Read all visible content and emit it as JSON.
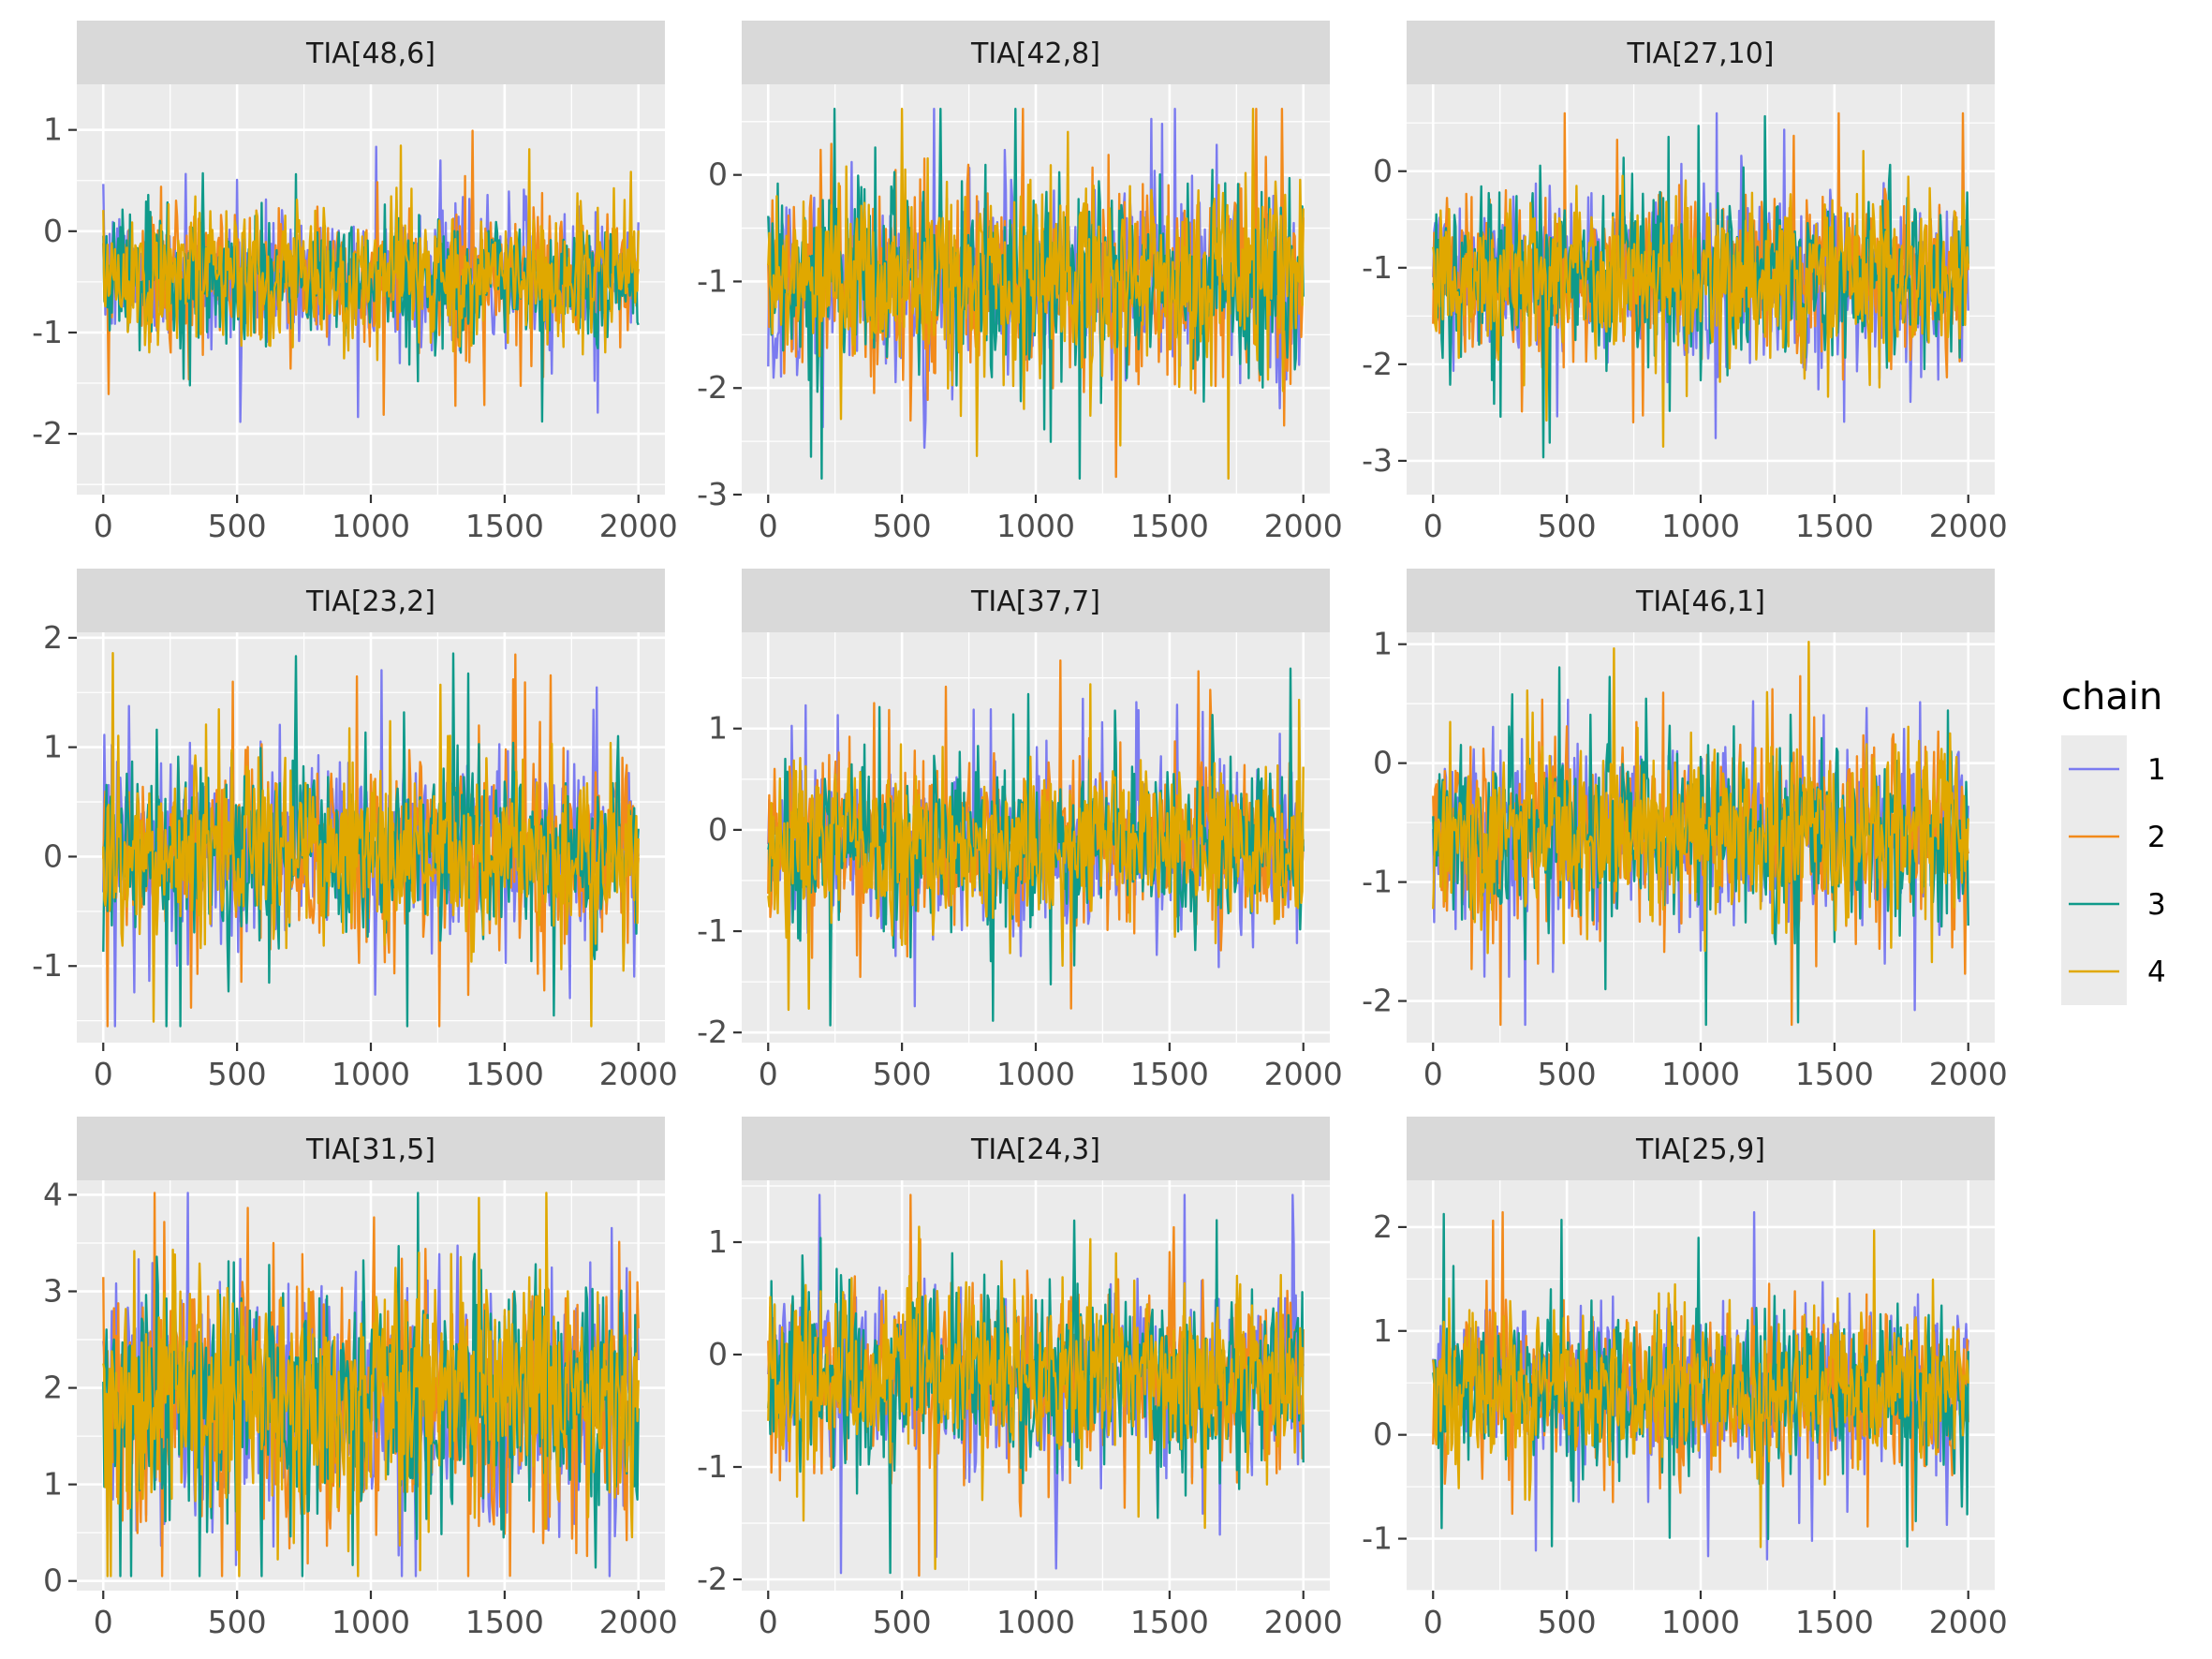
{
  "chart_data": {
    "type": "line",
    "layout": {
      "rows": 3,
      "cols": 3
    },
    "x_range": [
      0,
      2000
    ],
    "x_ticks": [
      0,
      500,
      1000,
      1500,
      2000
    ],
    "grid": true,
    "legend": {
      "title": "chain",
      "placement": "right",
      "entries": [
        {
          "label": "1",
          "color": "#7b7bf0"
        },
        {
          "label": "2",
          "color": "#f28a1b"
        },
        {
          "label": "3",
          "color": "#0f9a8a"
        },
        {
          "label": "4",
          "color": "#e0a800"
        }
      ]
    },
    "series_colors": [
      "#7b7bf0",
      "#f28a1b",
      "#0f9a8a",
      "#e0a800"
    ],
    "panels": [
      {
        "title": "TIA[48,6]",
        "ylim": [
          -2.6,
          1.45
        ],
        "yticks": [
          "-2",
          "-1",
          "0",
          "1"
        ],
        "ytick_values": [
          -2,
          -1,
          0,
          1
        ],
        "mean": -0.45,
        "sd": 0.33,
        "min": -2.42,
        "max": 1.32
      },
      {
        "title": "TIA[42,8]",
        "ylim": [
          -3.0,
          0.85
        ],
        "yticks": [
          "-3",
          "-2",
          "-1",
          "0"
        ],
        "ytick_values": [
          -3,
          -2,
          -1,
          0
        ],
        "mean": -1.0,
        "sd": 0.45,
        "min": -2.85,
        "max": 0.62
      },
      {
        "title": "TIA[27,10]",
        "ylim": [
          -3.35,
          0.9
        ],
        "yticks": [
          "-3",
          "-2",
          "-1",
          "0"
        ],
        "ytick_values": [
          -3,
          -2,
          -1,
          0
        ],
        "mean": -1.1,
        "sd": 0.42,
        "min": -3.18,
        "max": 0.6
      },
      {
        "title": "TIA[23,2]",
        "ylim": [
          -1.7,
          2.05
        ],
        "yticks": [
          "-1",
          "0",
          "1",
          "2"
        ],
        "ytick_values": [
          -1,
          0,
          1,
          2
        ],
        "mean": 0.05,
        "sd": 0.42,
        "min": -1.55,
        "max": 1.86
      },
      {
        "title": "TIA[37,7]",
        "ylim": [
          -2.1,
          1.95
        ],
        "yticks": [
          "-2",
          "-1",
          "0",
          "1"
        ],
        "ytick_values": [
          -2,
          -1,
          0,
          1
        ],
        "mean": -0.15,
        "sd": 0.42,
        "min": -1.93,
        "max": 1.75
      },
      {
        "title": "TIA[46,1]",
        "ylim": [
          -2.35,
          1.1
        ],
        "yticks": [
          "-2",
          "-1",
          "0",
          "1"
        ],
        "ytick_values": [
          -2,
          -1,
          0,
          1
        ],
        "mean": -0.6,
        "sd": 0.37,
        "min": -2.2,
        "max": 1.02
      },
      {
        "title": "TIA[31,5]",
        "ylim": [
          -0.1,
          4.15
        ],
        "yticks": [
          "0",
          "1",
          "2",
          "3",
          "4"
        ],
        "ytick_values": [
          0,
          1,
          2,
          3,
          4
        ],
        "mean": 1.9,
        "sd": 0.62,
        "min": 0.05,
        "max": 4.02
      },
      {
        "title": "TIA[24,3]",
        "ylim": [
          -2.1,
          1.55
        ],
        "yticks": [
          "-2",
          "-1",
          "0",
          "1"
        ],
        "ytick_values": [
          -2,
          -1,
          0,
          1
        ],
        "mean": -0.2,
        "sd": 0.4,
        "min": -2.0,
        "max": 1.42
      },
      {
        "title": "TIA[25,9]",
        "ylim": [
          -1.5,
          2.45
        ],
        "yticks": [
          "-1",
          "0",
          "1",
          "2"
        ],
        "ytick_values": [
          -1,
          0,
          1,
          2
        ],
        "mean": 0.45,
        "sd": 0.38,
        "min": -1.38,
        "max": 2.22
      }
    ]
  }
}
